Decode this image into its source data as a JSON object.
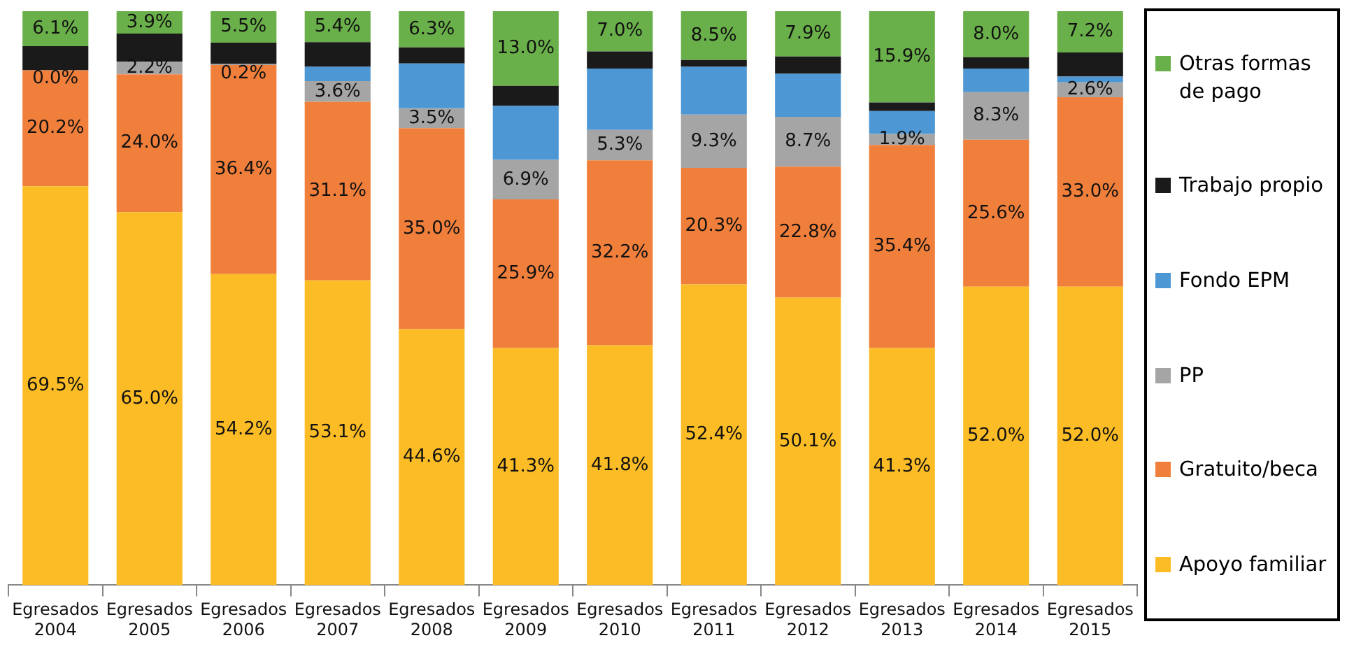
{
  "chart_data": {
    "type": "bar",
    "stacked": true,
    "categories": [
      "Egresados 2004",
      "Egresados 2005",
      "Egresados 2006",
      "Egresados 2007",
      "Egresados 2008",
      "Egresados 2009",
      "Egresados 2010",
      "Egresados 2011",
      "Egresados 2012",
      "Egresados 2013",
      "Egresados 2014",
      "Egresados 2015"
    ],
    "ylim": [
      0,
      100
    ],
    "tick_labels": "x",
    "grid": false,
    "legend": "right",
    "series": [
      {
        "name": "Apoyo familiar",
        "color": "#fbbc26",
        "values": [
          69.5,
          65.0,
          54.2,
          53.1,
          44.6,
          41.3,
          41.8,
          52.4,
          50.1,
          41.3,
          52.0,
          52.0
        ],
        "value_labels": [
          "69.5%",
          "65.0%",
          "54.2%",
          "53.1%",
          "44.6%",
          "41.3%",
          "41.8%",
          "52.4%",
          "50.1%",
          "41.3%",
          "52.0%",
          "52.0%"
        ]
      },
      {
        "name": "Gratuito/beca",
        "color": "#f07f3c",
        "values": [
          20.2,
          24.0,
          36.4,
          31.1,
          35.0,
          25.9,
          32.2,
          20.3,
          22.8,
          35.4,
          25.6,
          33.0
        ],
        "value_labels": [
          "20.2%",
          "24.0%",
          "36.4%",
          "31.1%",
          "35.0%",
          "25.9%",
          "32.2%",
          "20.3%",
          "22.8%",
          "35.4%",
          "25.6%",
          "33.0%"
        ]
      },
      {
        "name": "PP",
        "color": "#a5a5a5",
        "values": [
          0.0,
          2.2,
          0.2,
          3.6,
          3.5,
          6.9,
          5.3,
          9.3,
          8.7,
          1.9,
          8.3,
          2.6
        ],
        "value_labels": [
          "0.0%",
          "2.2%",
          "0.2%",
          "3.6%",
          "3.5%",
          "6.9%",
          "5.3%",
          "9.3%",
          "8.7%",
          "1.9%",
          "8.3%",
          "2.6%"
        ]
      },
      {
        "name": "Fondo EPM",
        "color": "#4d97d5",
        "values": [
          0,
          0,
          0,
          2.5,
          7.8,
          9.4,
          10.7,
          8.3,
          7.5,
          4.0,
          4.1,
          1.0
        ],
        "value_labels": [
          null,
          null,
          null,
          null,
          null,
          null,
          null,
          null,
          null,
          null,
          null,
          null
        ]
      },
      {
        "name": "Trabajo propio",
        "color": "#1a1a1a",
        "values": [
          4.2,
          4.9,
          3.7,
          4.3,
          2.8,
          3.5,
          3.0,
          1.2,
          3.0,
          1.5,
          2.0,
          4.2
        ],
        "value_labels": [
          null,
          null,
          null,
          null,
          null,
          null,
          null,
          null,
          null,
          null,
          null,
          null
        ]
      },
      {
        "name": "Otras formas de pago",
        "color": "#6ab04a",
        "values": [
          6.1,
          3.9,
          5.5,
          5.4,
          6.3,
          13.0,
          7.0,
          8.5,
          7.9,
          15.9,
          8.0,
          7.2
        ],
        "value_labels": [
          "6.1%",
          "3.9%",
          "5.5%",
          "5.4%",
          "6.3%",
          "13.0%",
          "7.0%",
          "8.5%",
          "7.9%",
          "15.9%",
          "8.0%",
          "7.2%"
        ]
      }
    ]
  }
}
